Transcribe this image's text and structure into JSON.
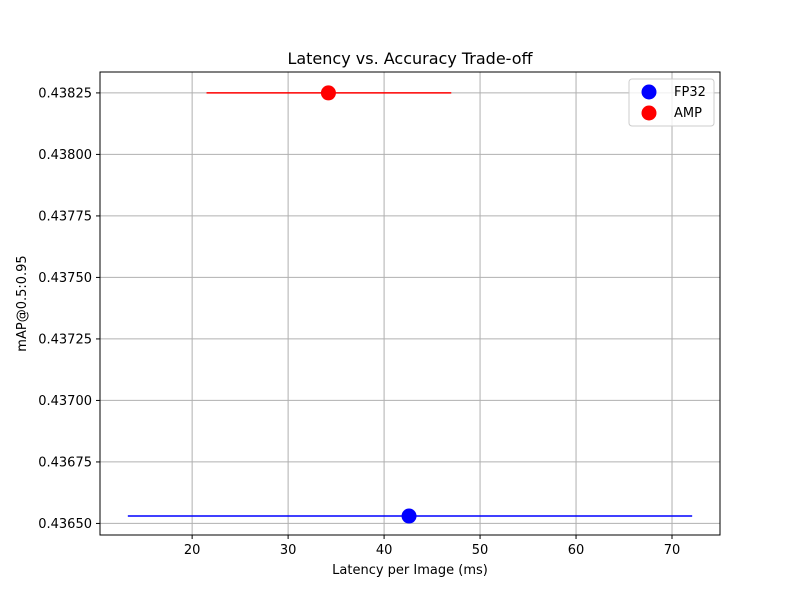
{
  "chart_data": {
    "type": "scatter",
    "title": "Latency vs. Accuracy Trade-off",
    "xlabel": "Latency per Image (ms)",
    "ylabel": "mAP@0.5:0.95",
    "xlim": [
      10.4,
      75
    ],
    "ylim": [
      0.436453,
      0.438335
    ],
    "x_ticks": [
      20,
      30,
      40,
      50,
      60,
      70
    ],
    "x_tick_labels": [
      "20",
      "30",
      "40",
      "50",
      "60",
      "70"
    ],
    "y_ticks": [
      0.4365,
      0.43675,
      0.437,
      0.43725,
      0.4375,
      0.43775,
      0.438,
      0.43825
    ],
    "y_tick_labels": [
      "0.43650",
      "0.43675",
      "0.43700",
      "0.43725",
      "0.43750",
      "0.43775",
      "0.43800",
      "0.43825"
    ],
    "grid": true,
    "legend_position": "top-right",
    "series": [
      {
        "name": "FP32",
        "color": "#0000ff",
        "x": [
          42.6
        ],
        "y": [
          0.43653
        ],
        "xerr_low": [
          13.3
        ],
        "xerr_high": [
          72.1
        ]
      },
      {
        "name": "AMP",
        "color": "#ff0000",
        "x": [
          34.2
        ],
        "y": [
          0.43825
        ],
        "xerr_low": [
          21.5
        ],
        "xerr_high": [
          47.0
        ]
      }
    ]
  }
}
